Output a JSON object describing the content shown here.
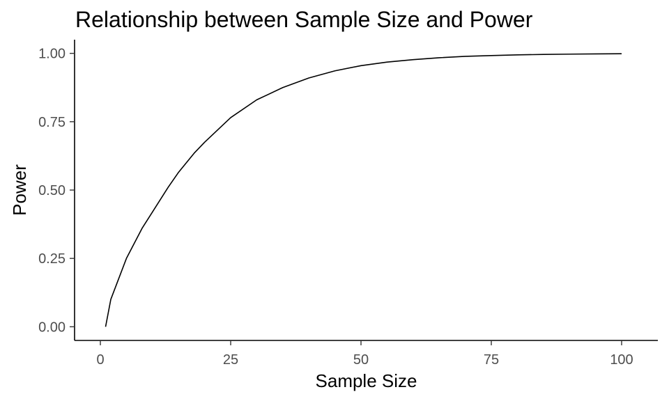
{
  "chart_data": {
    "type": "line",
    "title": "Relationship between Sample Size and Power",
    "xlabel": "Sample Size",
    "ylabel": "Power",
    "xlim": [
      -4.95,
      106.95
    ],
    "ylim": [
      -0.05,
      1.05
    ],
    "x_ticks": [
      0,
      25,
      50,
      75,
      100
    ],
    "x_tick_labels": [
      "0",
      "25",
      "50",
      "75",
      "100"
    ],
    "y_ticks": [
      0,
      0.25,
      0.5,
      0.75,
      1
    ],
    "y_tick_labels": [
      "0.00",
      "0.25",
      "0.50",
      "0.75",
      "1.00"
    ],
    "grid": false,
    "legend": "none",
    "line_color": "#000000",
    "series": [
      {
        "x": [
          1,
          2,
          3,
          5,
          8,
          10,
          13,
          15,
          18,
          20,
          25,
          30,
          35,
          40,
          45,
          50,
          55,
          60,
          65,
          70,
          75,
          80,
          85,
          90,
          95,
          100
        ],
        "values": [
          0.0,
          0.1,
          0.15,
          0.25,
          0.36,
          0.42,
          0.51,
          0.565,
          0.635,
          0.675,
          0.765,
          0.83,
          0.875,
          0.91,
          0.936,
          0.955,
          0.968,
          0.977,
          0.984,
          0.989,
          0.992,
          0.9945,
          0.996,
          0.9972,
          0.998,
          0.9986
        ]
      }
    ]
  }
}
